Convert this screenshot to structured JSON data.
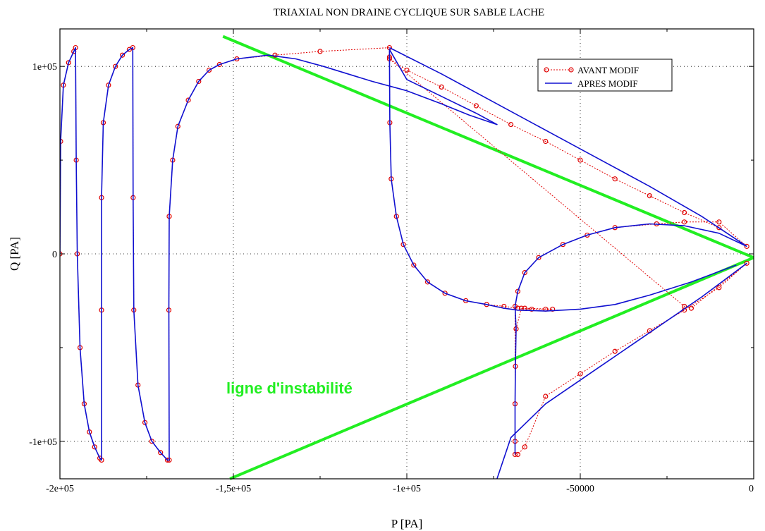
{
  "chart_data": {
    "type": "line",
    "title": "TRIAXIAL NON DRAINE CYCLIQUE SUR SABLE LACHE",
    "xlabel": "P [PA]",
    "ylabel": "Q [PA]",
    "xlim": [
      -200000,
      0
    ],
    "ylim": [
      -120000,
      120000
    ],
    "grid": true,
    "x_ticks": [
      {
        "value": -200000,
        "label": "-2e+05"
      },
      {
        "value": -150000,
        "label": "-1,5e+05"
      },
      {
        "value": -100000,
        "label": "-1e+05"
      },
      {
        "value": -50000,
        "label": "-50000"
      },
      {
        "value": 0,
        "label": "0"
      }
    ],
    "y_ticks": [
      {
        "value": 100000,
        "label": "1e+05"
      },
      {
        "value": 0,
        "label": "0"
      },
      {
        "value": -100000,
        "label": "-1e+05"
      }
    ],
    "legend": {
      "position": "top-right",
      "entries": [
        "AVANT MODIF",
        "APRES MODIF"
      ]
    },
    "colors": {
      "avant": "#e00000",
      "apres": "#1010d0",
      "instability": "#22ee22"
    },
    "series": [
      {
        "name": "AVANT MODIF",
        "style": "red dotted line with circle markers",
        "points": [
          [
            -200000,
            0
          ],
          [
            -199800,
            60000
          ],
          [
            -199000,
            90000
          ],
          [
            -197500,
            102000
          ],
          [
            -196000,
            108000
          ],
          [
            -195500,
            110000
          ],
          [
            -195300,
            50000
          ],
          [
            -195000,
            0
          ],
          [
            -194200,
            -50000
          ],
          [
            -193000,
            -80000
          ],
          [
            -191500,
            -95000
          ],
          [
            -190000,
            -103000
          ],
          [
            -188500,
            -109000
          ],
          [
            -188000,
            -110000
          ],
          [
            -188000,
            -30000
          ],
          [
            -188000,
            30000
          ],
          [
            -187500,
            70000
          ],
          [
            -186000,
            90000
          ],
          [
            -184000,
            100000
          ],
          [
            -182000,
            106000
          ],
          [
            -180000,
            109000
          ],
          [
            -179000,
            110000
          ],
          [
            -178900,
            30000
          ],
          [
            -178700,
            -30000
          ],
          [
            -177500,
            -70000
          ],
          [
            -175500,
            -90000
          ],
          [
            -173500,
            -100000
          ],
          [
            -171000,
            -106000
          ],
          [
            -169000,
            -110000
          ],
          [
            -168500,
            -110000
          ],
          [
            -168600,
            -30000
          ],
          [
            -168500,
            20000
          ],
          [
            -167500,
            50000
          ],
          [
            -166000,
            68000
          ],
          [
            -163000,
            82000
          ],
          [
            -160000,
            92000
          ],
          [
            -157000,
            98000
          ],
          [
            -154000,
            101000
          ],
          [
            -149000,
            104000
          ],
          [
            -138000,
            106000
          ],
          [
            -125000,
            108000
          ],
          [
            -105000,
            110000
          ],
          [
            -105000,
            105000
          ],
          [
            -104900,
            70000
          ],
          [
            -104500,
            40000
          ],
          [
            -103000,
            20000
          ],
          [
            -101000,
            5000
          ],
          [
            -98000,
            -6000
          ],
          [
            -94000,
            -15000
          ],
          [
            -89000,
            -21000
          ],
          [
            -83000,
            -25000
          ],
          [
            -77000,
            -27000
          ],
          [
            -72000,
            -28000
          ],
          [
            -68000,
            -29000
          ],
          [
            -64000,
            -29500
          ],
          [
            -60000,
            -29500
          ],
          [
            -58000,
            -29500
          ],
          [
            -66000,
            -29000
          ],
          [
            -67000,
            -29000
          ],
          [
            -68500,
            -40000
          ],
          [
            -68700,
            -60000
          ],
          [
            -68800,
            -80000
          ],
          [
            -68800,
            -100000
          ],
          [
            -68800,
            -107000
          ],
          [
            -68800,
            -28000
          ],
          [
            -68000,
            -20000
          ],
          [
            -66000,
            -10000
          ],
          [
            -62000,
            -2000
          ],
          [
            -55000,
            5000
          ],
          [
            -48000,
            10000
          ],
          [
            -40000,
            14000
          ],
          [
            -28000,
            16000
          ],
          [
            -20000,
            17000
          ],
          [
            -10000,
            17000
          ],
          [
            -2000,
            4000
          ],
          [
            -10000,
            14000
          ],
          [
            -20000,
            22000
          ],
          [
            -30000,
            31000
          ],
          [
            -40000,
            40000
          ],
          [
            -50000,
            50000
          ],
          [
            -60000,
            60000
          ],
          [
            -70000,
            69000
          ],
          [
            -80000,
            79000
          ],
          [
            -90000,
            89000
          ],
          [
            -100000,
            98000
          ],
          [
            -105000,
            104000
          ],
          [
            -20000,
            -28000
          ],
          [
            -18000,
            -29000
          ],
          [
            -2000,
            -5000
          ],
          [
            -10000,
            -18000
          ],
          [
            -20000,
            -30000
          ],
          [
            -30000,
            -41000
          ],
          [
            -40000,
            -52000
          ],
          [
            -50000,
            -64000
          ],
          [
            -60000,
            -76000
          ],
          [
            -66000,
            -103000
          ],
          [
            -68000,
            -107000
          ]
        ]
      },
      {
        "name": "APRES MODIF",
        "style": "blue solid line",
        "points": [
          [
            -200000,
            0
          ],
          [
            -199800,
            60000
          ],
          [
            -199000,
            90000
          ],
          [
            -197500,
            102000
          ],
          [
            -196000,
            108000
          ],
          [
            -195500,
            110000
          ],
          [
            -195300,
            50000
          ],
          [
            -195000,
            0
          ],
          [
            -194200,
            -50000
          ],
          [
            -193000,
            -80000
          ],
          [
            -191500,
            -95000
          ],
          [
            -190000,
            -103000
          ],
          [
            -188500,
            -109000
          ],
          [
            -188000,
            -110000
          ],
          [
            -188000,
            -30000
          ],
          [
            -188000,
            30000
          ],
          [
            -187500,
            70000
          ],
          [
            -186000,
            90000
          ],
          [
            -184000,
            100000
          ],
          [
            -182000,
            106000
          ],
          [
            -180000,
            109000
          ],
          [
            -179000,
            110000
          ],
          [
            -178900,
            30000
          ],
          [
            -178700,
            -30000
          ],
          [
            -177500,
            -70000
          ],
          [
            -175500,
            -90000
          ],
          [
            -173500,
            -100000
          ],
          [
            -171000,
            -106000
          ],
          [
            -169000,
            -110000
          ],
          [
            -168500,
            -110000
          ],
          [
            -168600,
            -30000
          ],
          [
            -168500,
            20000
          ],
          [
            -167500,
            50000
          ],
          [
            -166000,
            68000
          ],
          [
            -163000,
            82000
          ],
          [
            -160000,
            92000
          ],
          [
            -157000,
            98000
          ],
          [
            -154000,
            101000
          ],
          [
            -149000,
            104000
          ],
          [
            -140000,
            106000
          ],
          [
            -132000,
            104000
          ],
          [
            -124000,
            100000
          ],
          [
            -110000,
            92000
          ],
          [
            -100000,
            87000
          ],
          [
            -90000,
            80000
          ],
          [
            -82000,
            74000
          ],
          [
            -74000,
            69000
          ],
          [
            -74000,
            69000
          ],
          [
            -80000,
            75000
          ],
          [
            -90000,
            84000
          ],
          [
            -100000,
            93000
          ],
          [
            -105000,
            109000
          ],
          [
            -105000,
            105000
          ],
          [
            -104900,
            70000
          ],
          [
            -104500,
            40000
          ],
          [
            -103000,
            20000
          ],
          [
            -101000,
            5000
          ],
          [
            -98000,
            -6000
          ],
          [
            -94000,
            -15000
          ],
          [
            -89000,
            -21000
          ],
          [
            -83000,
            -25000
          ],
          [
            -77000,
            -27000
          ],
          [
            -72000,
            -29000
          ],
          [
            -68000,
            -30000
          ],
          [
            -60000,
            -30500
          ],
          [
            -50000,
            -29500
          ],
          [
            -40000,
            -27000
          ],
          [
            -30000,
            -22000
          ],
          [
            -18000,
            -15000
          ],
          [
            -8000,
            -8000
          ],
          [
            -5000,
            -6000
          ]
        ]
      },
      {
        "name": "APRES MODIF",
        "style": "blue solid line",
        "points": [
          [
            -68800,
            -107000
          ],
          [
            -68800,
            -80000
          ],
          [
            -68700,
            -60000
          ],
          [
            -68500,
            -40000
          ],
          [
            -68800,
            -28000
          ],
          [
            -68000,
            -20000
          ],
          [
            -66000,
            -10000
          ],
          [
            -62000,
            -2000
          ],
          [
            -55000,
            5000
          ],
          [
            -48000,
            10000
          ],
          [
            -40000,
            14000
          ],
          [
            -30000,
            16000
          ],
          [
            -20000,
            15000
          ],
          [
            -10000,
            11000
          ],
          [
            -2000,
            4000
          ]
        ]
      },
      {
        "name": "APRES MODIF",
        "style": "blue solid line",
        "points": [
          [
            -105000,
            110000
          ],
          [
            -90000,
            96000
          ],
          [
            -75000,
            81000
          ],
          [
            -60000,
            66000
          ],
          [
            -45000,
            51000
          ],
          [
            -30000,
            36000
          ],
          [
            -15000,
            20000
          ],
          [
            -2000,
            4000
          ]
        ]
      },
      {
        "name": "APRES MODIF",
        "style": "blue solid line",
        "points": [
          [
            -2000,
            -5000
          ],
          [
            -15000,
            -23000
          ],
          [
            -30000,
            -42000
          ],
          [
            -45000,
            -61000
          ],
          [
            -60000,
            -80000
          ],
          [
            -70000,
            -98000
          ],
          [
            -74000,
            -120000
          ]
        ]
      }
    ],
    "annotations": [
      {
        "text": "ligne d'instabilité",
        "color": "#22ee22"
      }
    ],
    "instability_lines": [
      {
        "from": [
          -153000,
          116000
        ],
        "to": [
          0,
          -2000
        ]
      },
      {
        "from": [
          -151000,
          -120000
        ],
        "to": [
          0,
          -2000
        ]
      }
    ]
  }
}
